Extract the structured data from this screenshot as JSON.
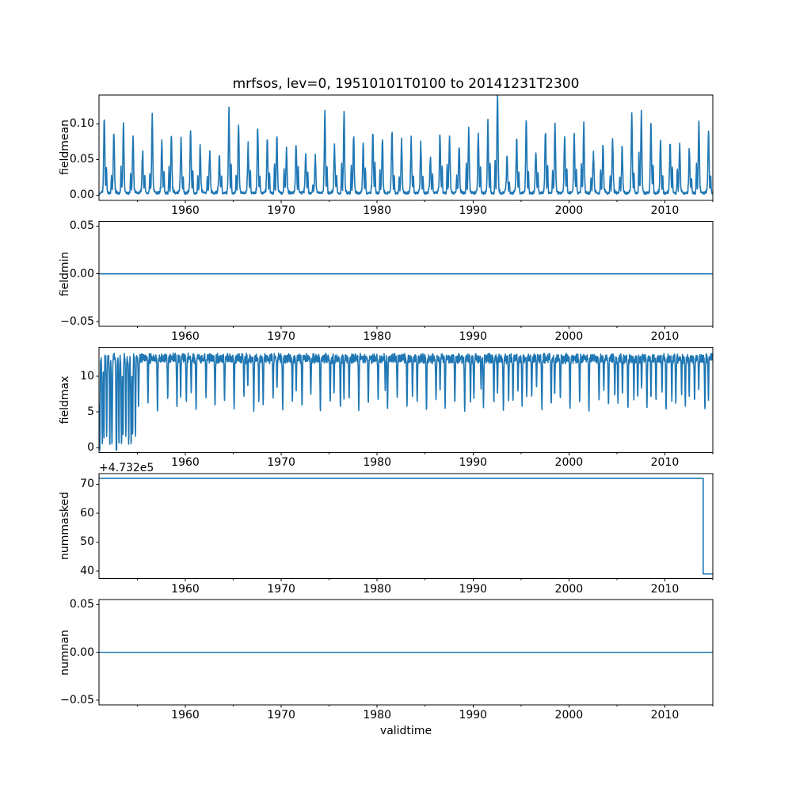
{
  "title": "mrfsos, lev=0, 19510101T0100 to 20141231T2300",
  "xlabel": "validtime",
  "line_color": "#1f77b4",
  "background_color": "#ffffff",
  "x_axis": {
    "lim": [
      1951,
      2015
    ],
    "major_ticks": [
      {
        "year": 1960,
        "label": "1960"
      },
      {
        "year": 1970,
        "label": "1970"
      },
      {
        "year": 1980,
        "label": "1980"
      },
      {
        "year": 1990,
        "label": "1990"
      },
      {
        "year": 2000,
        "label": "2000"
      },
      {
        "year": 2010,
        "label": "2010"
      }
    ],
    "minor_tick_years": [
      1955,
      1965,
      1975,
      1985,
      1995,
      2005,
      2015
    ]
  },
  "chart_data": [
    {
      "type": "line",
      "name": "fieldmean",
      "ylabel": "fieldmean",
      "ylim": [
        -0.007,
        0.1404
      ],
      "yticks": [
        {
          "value": 0.0,
          "label": "0.00"
        },
        {
          "value": 0.05,
          "label": "0.05"
        },
        {
          "value": 0.1,
          "label": "0.10"
        }
      ],
      "series": {
        "kind": "annual_spikes",
        "start_year": 1951,
        "baseline": 0.002,
        "peak_by_year": [
          0.101,
          0.079,
          0.09,
          0.072,
          0.052,
          0.102,
          0.07,
          0.077,
          0.068,
          0.083,
          0.06,
          0.053,
          0.049,
          0.108,
          0.091,
          0.062,
          0.086,
          0.069,
          0.075,
          0.054,
          0.063,
          0.05,
          0.044,
          0.107,
          0.062,
          0.106,
          0.075,
          0.059,
          0.08,
          0.072,
          0.083,
          0.067,
          0.069,
          0.062,
          0.047,
          0.078,
          0.075,
          0.058,
          0.084,
          0.08,
          0.093,
          0.134,
          0.05,
          0.071,
          0.095,
          0.056,
          0.082,
          0.091,
          0.071,
          0.075,
          0.093,
          0.049,
          0.065,
          0.071,
          0.06,
          0.108,
          0.107,
          0.091,
          0.069,
          0.065,
          0.06,
          0.056,
          0.091,
          0.082
        ]
      }
    },
    {
      "type": "line",
      "name": "fieldmin",
      "ylabel": "fieldmin",
      "ylim": [
        -0.055,
        0.055
      ],
      "yticks": [
        {
          "value": -0.05,
          "label": "−0.05"
        },
        {
          "value": 0.0,
          "label": "0.00"
        },
        {
          "value": 0.05,
          "label": "0.05"
        }
      ],
      "series": {
        "kind": "constant",
        "value": 0.0
      }
    },
    {
      "type": "line",
      "name": "fieldmax",
      "ylabel": "fieldmax",
      "ylim": [
        -0.67,
        14.04
      ],
      "yticks": [
        {
          "value": 0,
          "label": "0"
        },
        {
          "value": 5,
          "label": "5"
        },
        {
          "value": 10,
          "label": "10"
        }
      ],
      "series": {
        "kind": "plateau_with_dips",
        "start_year": 1951,
        "plateau_level": 12.5,
        "plateau_max": 13.35,
        "dip_min_by_year": [
          0.1,
          0.0,
          0.2,
          0.3,
          5.5,
          6.2,
          5.0,
          6.8,
          5.6,
          6.4,
          5.2,
          7.0,
          5.8,
          6.6,
          5.4,
          7.2,
          5.1,
          6.0,
          6.9,
          5.3,
          6.5,
          5.7,
          7.4,
          5.0,
          6.3,
          5.5,
          6.8,
          5.2,
          6.1,
          6.6,
          5.4,
          7.0,
          5.8,
          6.4,
          5.1,
          6.7,
          5.5,
          6.2,
          5.0,
          6.9,
          5.6,
          6.3,
          5.2,
          6.6,
          5.8,
          7.1,
          5.3,
          6.0,
          6.8,
          5.5,
          6.4,
          5.1,
          6.7,
          5.9,
          6.2,
          5.4,
          7.0,
          5.6,
          6.5,
          5.2,
          6.1,
          5.8,
          6.6,
          5.3
        ]
      }
    },
    {
      "type": "line",
      "name": "nummasked",
      "ylabel": "nummasked",
      "offset_text": "+4.732e5",
      "ylim": [
        473237.35,
        473273.65
      ],
      "yticks": [
        {
          "value": 473240,
          "label": "40"
        },
        {
          "value": 473250,
          "label": "50"
        },
        {
          "value": 473260,
          "label": "60"
        },
        {
          "value": 473270,
          "label": "70"
        }
      ],
      "series": {
        "kind": "step",
        "x": [
          1951,
          2014,
          2014,
          2015
        ],
        "y": [
          473272,
          473272,
          473239,
          473239
        ]
      }
    },
    {
      "type": "line",
      "name": "numnan",
      "ylabel": "numnan",
      "ylim": [
        -0.055,
        0.055
      ],
      "yticks": [
        {
          "value": -0.05,
          "label": "−0.05"
        },
        {
          "value": 0.0,
          "label": "0.00"
        },
        {
          "value": 0.05,
          "label": "0.05"
        }
      ],
      "series": {
        "kind": "constant",
        "value": 0.0
      }
    }
  ]
}
